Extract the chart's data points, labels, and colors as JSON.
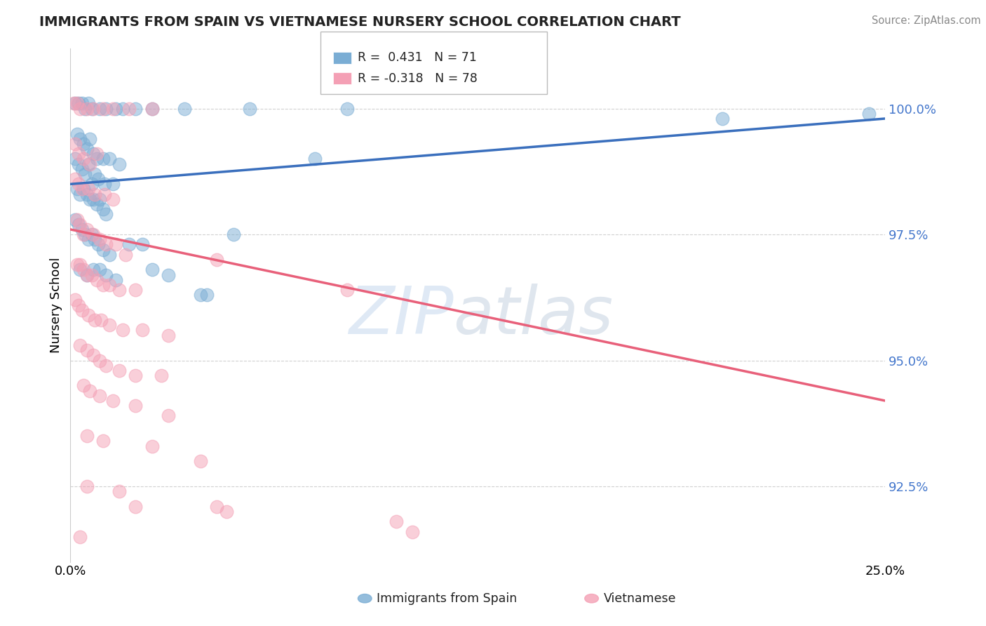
{
  "title": "IMMIGRANTS FROM SPAIN VS VIETNAMESE NURSERY SCHOOL CORRELATION CHART",
  "source": "Source: ZipAtlas.com",
  "ylabel": "Nursery School",
  "yticks": [
    92.5,
    95.0,
    97.5,
    100.0
  ],
  "ytick_labels": [
    "92.5%",
    "95.0%",
    "97.5%",
    "100.0%"
  ],
  "xmin": 0.0,
  "xmax": 25.0,
  "ymin": 91.0,
  "ymax": 101.2,
  "legend_label_immigrants": "Immigrants from Spain",
  "legend_label_vietnamese": "Vietnamese",
  "watermark_zip": "ZIP",
  "watermark_atlas": "atlas",
  "blue_color": "#7aadd4",
  "pink_color": "#f4a0b5",
  "blue_line_color": "#3a6fbd",
  "pink_line_color": "#e8607a",
  "blue_R": 0.431,
  "blue_N": 71,
  "pink_R": -0.318,
  "pink_N": 78,
  "blue_line_x0": 0.0,
  "blue_line_y0": 98.5,
  "blue_line_x1": 25.0,
  "blue_line_y1": 99.8,
  "pink_line_x0": 0.0,
  "pink_line_y0": 97.6,
  "pink_line_x1": 25.0,
  "pink_line_y1": 94.2,
  "blue_scatter": [
    [
      0.15,
      100.1
    ],
    [
      0.25,
      100.1
    ],
    [
      0.35,
      100.1
    ],
    [
      0.45,
      100.0
    ],
    [
      0.55,
      100.1
    ],
    [
      0.65,
      100.0
    ],
    [
      0.9,
      100.0
    ],
    [
      1.1,
      100.0
    ],
    [
      1.4,
      100.0
    ],
    [
      1.6,
      100.0
    ],
    [
      2.0,
      100.0
    ],
    [
      2.5,
      100.0
    ],
    [
      3.5,
      100.0
    ],
    [
      5.5,
      100.0
    ],
    [
      8.5,
      100.0
    ],
    [
      0.2,
      99.5
    ],
    [
      0.3,
      99.4
    ],
    [
      0.4,
      99.3
    ],
    [
      0.5,
      99.2
    ],
    [
      0.6,
      99.4
    ],
    [
      0.7,
      99.1
    ],
    [
      0.8,
      99.0
    ],
    [
      1.0,
      99.0
    ],
    [
      1.2,
      99.0
    ],
    [
      1.5,
      98.9
    ],
    [
      0.15,
      99.0
    ],
    [
      0.25,
      98.9
    ],
    [
      0.35,
      98.8
    ],
    [
      0.45,
      98.7
    ],
    [
      0.55,
      98.9
    ],
    [
      0.65,
      98.5
    ],
    [
      0.75,
      98.7
    ],
    [
      0.85,
      98.6
    ],
    [
      1.05,
      98.5
    ],
    [
      1.3,
      98.5
    ],
    [
      0.2,
      98.4
    ],
    [
      0.3,
      98.3
    ],
    [
      0.4,
      98.4
    ],
    [
      0.5,
      98.3
    ],
    [
      0.6,
      98.2
    ],
    [
      0.7,
      98.2
    ],
    [
      0.8,
      98.1
    ],
    [
      0.9,
      98.2
    ],
    [
      1.0,
      98.0
    ],
    [
      1.1,
      97.9
    ],
    [
      0.15,
      97.8
    ],
    [
      0.25,
      97.7
    ],
    [
      0.35,
      97.6
    ],
    [
      0.45,
      97.5
    ],
    [
      0.55,
      97.4
    ],
    [
      0.65,
      97.5
    ],
    [
      0.75,
      97.4
    ],
    [
      0.85,
      97.3
    ],
    [
      1.0,
      97.2
    ],
    [
      1.2,
      97.1
    ],
    [
      1.8,
      97.3
    ],
    [
      2.2,
      97.3
    ],
    [
      0.3,
      96.8
    ],
    [
      0.5,
      96.7
    ],
    [
      0.7,
      96.8
    ],
    [
      0.9,
      96.8
    ],
    [
      1.1,
      96.7
    ],
    [
      1.4,
      96.6
    ],
    [
      2.5,
      96.8
    ],
    [
      3.0,
      96.7
    ],
    [
      4.0,
      96.3
    ],
    [
      4.2,
      96.3
    ],
    [
      5.0,
      97.5
    ],
    [
      7.5,
      99.0
    ],
    [
      20.0,
      99.8
    ],
    [
      24.5,
      99.9
    ]
  ],
  "pink_scatter": [
    [
      0.1,
      100.1
    ],
    [
      0.2,
      100.1
    ],
    [
      0.3,
      100.0
    ],
    [
      0.5,
      100.0
    ],
    [
      0.7,
      100.0
    ],
    [
      1.0,
      100.0
    ],
    [
      1.3,
      100.0
    ],
    [
      1.8,
      100.0
    ],
    [
      2.5,
      100.0
    ],
    [
      0.15,
      99.3
    ],
    [
      0.25,
      99.1
    ],
    [
      0.4,
      99.0
    ],
    [
      0.6,
      98.9
    ],
    [
      0.8,
      99.1
    ],
    [
      0.15,
      98.6
    ],
    [
      0.25,
      98.5
    ],
    [
      0.35,
      98.4
    ],
    [
      0.55,
      98.4
    ],
    [
      0.75,
      98.3
    ],
    [
      1.05,
      98.3
    ],
    [
      1.3,
      98.2
    ],
    [
      0.2,
      97.8
    ],
    [
      0.3,
      97.7
    ],
    [
      0.4,
      97.5
    ],
    [
      0.5,
      97.6
    ],
    [
      0.7,
      97.5
    ],
    [
      0.9,
      97.4
    ],
    [
      1.1,
      97.3
    ],
    [
      1.4,
      97.3
    ],
    [
      1.7,
      97.1
    ],
    [
      0.2,
      96.9
    ],
    [
      0.3,
      96.9
    ],
    [
      0.4,
      96.8
    ],
    [
      0.5,
      96.7
    ],
    [
      0.65,
      96.7
    ],
    [
      0.8,
      96.6
    ],
    [
      1.0,
      96.5
    ],
    [
      1.2,
      96.5
    ],
    [
      1.5,
      96.4
    ],
    [
      2.0,
      96.4
    ],
    [
      0.15,
      96.2
    ],
    [
      0.25,
      96.1
    ],
    [
      0.35,
      96.0
    ],
    [
      0.55,
      95.9
    ],
    [
      0.75,
      95.8
    ],
    [
      0.95,
      95.8
    ],
    [
      1.2,
      95.7
    ],
    [
      1.6,
      95.6
    ],
    [
      2.2,
      95.6
    ],
    [
      3.0,
      95.5
    ],
    [
      0.3,
      95.3
    ],
    [
      0.5,
      95.2
    ],
    [
      0.7,
      95.1
    ],
    [
      0.9,
      95.0
    ],
    [
      1.1,
      94.9
    ],
    [
      1.5,
      94.8
    ],
    [
      2.0,
      94.7
    ],
    [
      2.8,
      94.7
    ],
    [
      4.5,
      97.0
    ],
    [
      0.4,
      94.5
    ],
    [
      0.6,
      94.4
    ],
    [
      0.9,
      94.3
    ],
    [
      1.3,
      94.2
    ],
    [
      2.0,
      94.1
    ],
    [
      3.0,
      93.9
    ],
    [
      0.5,
      93.5
    ],
    [
      1.0,
      93.4
    ],
    [
      2.5,
      93.3
    ],
    [
      4.0,
      93.0
    ],
    [
      0.5,
      92.5
    ],
    [
      1.5,
      92.4
    ],
    [
      2.0,
      92.1
    ],
    [
      0.3,
      91.5
    ],
    [
      4.5,
      92.1
    ],
    [
      4.8,
      92.0
    ],
    [
      8.5,
      96.4
    ],
    [
      10.0,
      91.8
    ],
    [
      10.5,
      91.6
    ]
  ]
}
